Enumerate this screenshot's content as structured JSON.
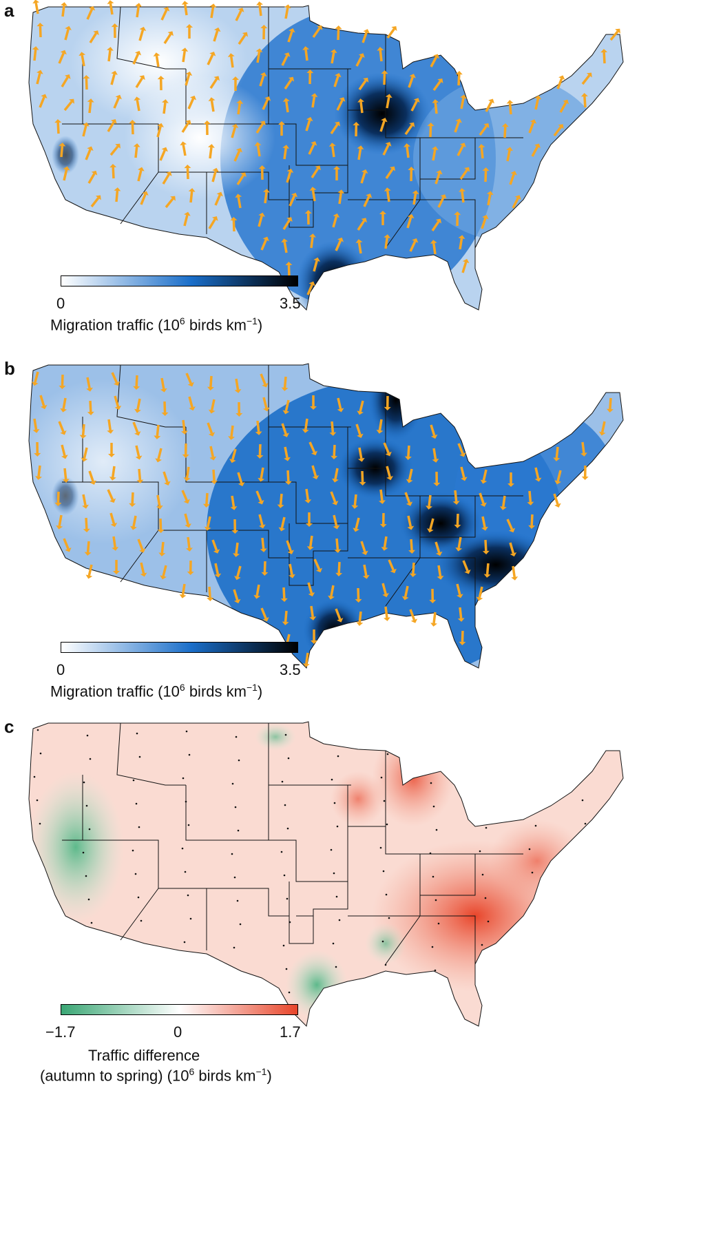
{
  "panels": [
    {
      "letter": "a",
      "legend": {
        "min": "0",
        "max": "3.5",
        "title_pre": "Migration traffic (10",
        "title_sup1": "6",
        "title_mid": " birds km",
        "title_sup2": "−1",
        "title_post": ")",
        "colors": [
          "#ffffff",
          "#1a6ec9",
          "#000000"
        ]
      },
      "arrow_direction": "northward",
      "arrow_color": "#f5a623"
    },
    {
      "letter": "b",
      "legend": {
        "min": "0",
        "max": "3.5",
        "title_pre": "Migration traffic (10",
        "title_sup1": "6",
        "title_mid": " birds km",
        "title_sup2": "−1",
        "title_post": ")",
        "colors": [
          "#ffffff",
          "#1a6ec9",
          "#000000"
        ]
      },
      "arrow_direction": "southward",
      "arrow_color": "#f5a623"
    },
    {
      "letter": "c",
      "legend": {
        "min": "−1.7",
        "mid": "0",
        "max": "1.7",
        "title_line1": "Traffic difference",
        "title_pre": "(autumn to spring) (10",
        "title_sup1": "6",
        "title_mid": " birds km",
        "title_sup2": "−1",
        "title_post": ")",
        "colors": [
          "#3aa674",
          "#ffffff",
          "#e8452a"
        ]
      }
    }
  ]
}
